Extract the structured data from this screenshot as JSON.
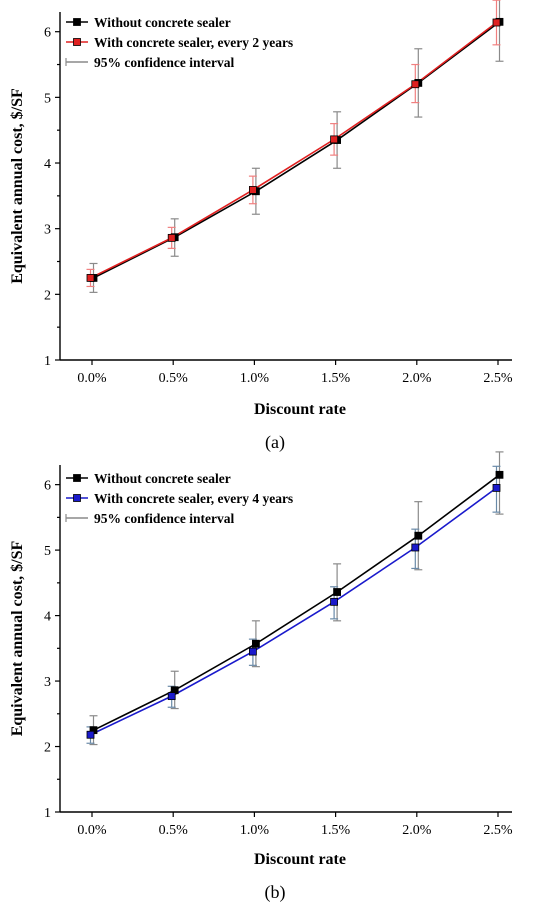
{
  "chart_data": [
    {
      "type": "line",
      "panel_label": "(a)",
      "xlabel": "Discount rate",
      "ylabel": "Equivalent annual cost, $/SF",
      "categories": [
        "0.0%",
        "0.5%",
        "1.0%",
        "1.5%",
        "2.0%",
        "2.5%"
      ],
      "y_ticks": [
        "1",
        "2",
        "3",
        "4",
        "5",
        "6"
      ],
      "ylim": [
        1,
        6.3
      ],
      "legend_position": "top-left",
      "legend_ci_label": "95% confidence interval",
      "series": [
        {
          "name": "Without concrete sealer",
          "color": "#000000",
          "values": [
            2.25,
            2.87,
            3.57,
            4.35,
            5.22,
            6.15
          ],
          "ci_low": [
            2.03,
            2.58,
            3.22,
            3.92,
            4.7,
            5.55
          ],
          "ci_high": [
            2.47,
            3.15,
            3.92,
            4.78,
            5.74,
            6.5
          ],
          "ci_color": "#8a8a8a"
        },
        {
          "name": "With concrete sealer, every 2 years",
          "color": "#e02020",
          "values": [
            2.25,
            2.86,
            3.59,
            4.36,
            5.2,
            6.14
          ],
          "ci_low": [
            2.12,
            2.7,
            3.38,
            4.12,
            4.92,
            5.8
          ],
          "ci_high": [
            2.38,
            3.02,
            3.8,
            4.6,
            5.5,
            6.48
          ],
          "ci_color": "#f08080"
        }
      ]
    },
    {
      "type": "line",
      "panel_label": "(b)",
      "xlabel": "Discount rate",
      "ylabel": "Equivalent annual cost, $/SF",
      "categories": [
        "0.0%",
        "0.5%",
        "1.0%",
        "1.5%",
        "2.0%",
        "2.5%"
      ],
      "y_ticks": [
        "1",
        "2",
        "3",
        "4",
        "5",
        "6"
      ],
      "ylim": [
        1,
        6.3
      ],
      "legend_position": "top-left",
      "legend_ci_label": "95% confidence interval",
      "series": [
        {
          "name": "Without concrete sealer",
          "color": "#000000",
          "values": [
            2.25,
            2.86,
            3.57,
            4.36,
            5.22,
            6.15
          ],
          "ci_low": [
            2.03,
            2.58,
            3.22,
            3.92,
            4.7,
            5.55
          ],
          "ci_high": [
            2.47,
            3.15,
            3.92,
            4.79,
            5.74,
            6.5
          ],
          "ci_color": "#8a8a8a"
        },
        {
          "name": "With concrete sealer, every 4 years",
          "color": "#1a1acc",
          "values": [
            2.18,
            2.77,
            3.45,
            4.21,
            5.04,
            5.95
          ],
          "ci_low": [
            2.05,
            2.6,
            3.24,
            3.95,
            4.72,
            5.58
          ],
          "ci_high": [
            2.3,
            2.92,
            3.64,
            4.44,
            5.32,
            6.28
          ],
          "ci_color": "#6a8aa8"
        }
      ]
    }
  ]
}
